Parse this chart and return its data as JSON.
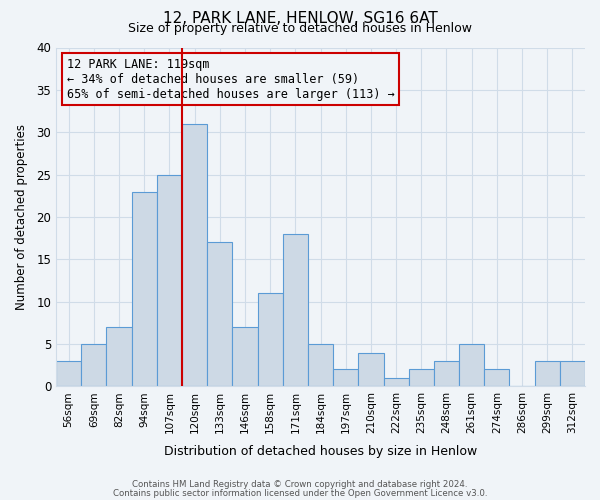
{
  "title_line1": "12, PARK LANE, HENLOW, SG16 6AT",
  "title_line2": "Size of property relative to detached houses in Henlow",
  "xlabel": "Distribution of detached houses by size in Henlow",
  "ylabel": "Number of detached properties",
  "bar_labels": [
    "56sqm",
    "69sqm",
    "82sqm",
    "94sqm",
    "107sqm",
    "120sqm",
    "133sqm",
    "146sqm",
    "158sqm",
    "171sqm",
    "184sqm",
    "197sqm",
    "210sqm",
    "222sqm",
    "235sqm",
    "248sqm",
    "261sqm",
    "274sqm",
    "286sqm",
    "299sqm",
    "312sqm"
  ],
  "bar_values": [
    3,
    5,
    7,
    23,
    25,
    31,
    17,
    7,
    11,
    18,
    5,
    2,
    4,
    1,
    2,
    3,
    5,
    2,
    0,
    3,
    3
  ],
  "bar_color": "#cdd9e5",
  "bar_edgecolor": "#5b9bd5",
  "vline_x_index": 5,
  "vline_color": "#cc0000",
  "annotation_line1": "12 PARK LANE: 119sqm",
  "annotation_line2": "← 34% of detached houses are smaller (59)",
  "annotation_line3": "65% of semi-detached houses are larger (113) →",
  "annotation_box_edgecolor": "#cc0000",
  "ylim": [
    0,
    40
  ],
  "yticks": [
    0,
    5,
    10,
    15,
    20,
    25,
    30,
    35,
    40
  ],
  "background_color": "#f0f4f8",
  "grid_color": "#d0dce8",
  "footer_line1": "Contains HM Land Registry data © Crown copyright and database right 2024.",
  "footer_line2": "Contains public sector information licensed under the Open Government Licence v3.0."
}
